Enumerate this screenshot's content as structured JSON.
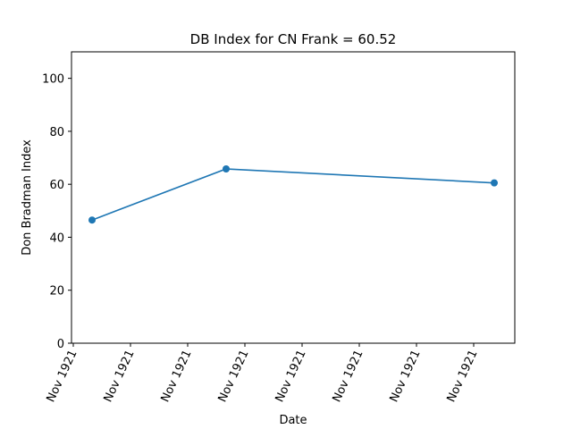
{
  "chart_data": {
    "type": "line",
    "title": "DB Index for CN Frank = 60.52",
    "xlabel": "Date",
    "ylabel": "Don Bradman Index",
    "x_tick_labels": [
      "Nov 1921",
      "Nov 1921",
      "Nov 1921",
      "Nov 1921",
      "Nov 1921",
      "Nov 1921",
      "Nov 1921",
      "Nov 1921"
    ],
    "y_ticks": [
      0,
      20,
      40,
      60,
      80,
      100
    ],
    "ylim": [
      0,
      110
    ],
    "series": [
      {
        "x_index": [
          0,
          1,
          2
        ],
        "values": [
          46.5,
          65.8,
          60.52
        ],
        "color": "#1f77b4"
      }
    ],
    "grid": false,
    "legend": "none"
  }
}
